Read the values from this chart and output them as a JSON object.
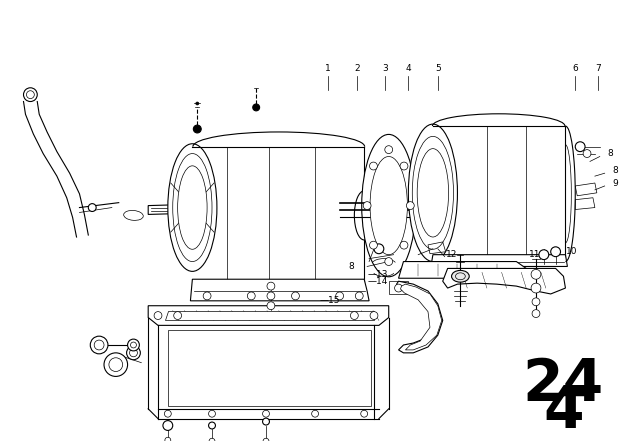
{
  "background_color": "#ffffff",
  "line_color": "#000000",
  "fig_width": 6.4,
  "fig_height": 4.48,
  "dpi": 100,
  "page_number_top": "24",
  "page_number_bottom": "4",
  "label_fontsize": 6.5
}
